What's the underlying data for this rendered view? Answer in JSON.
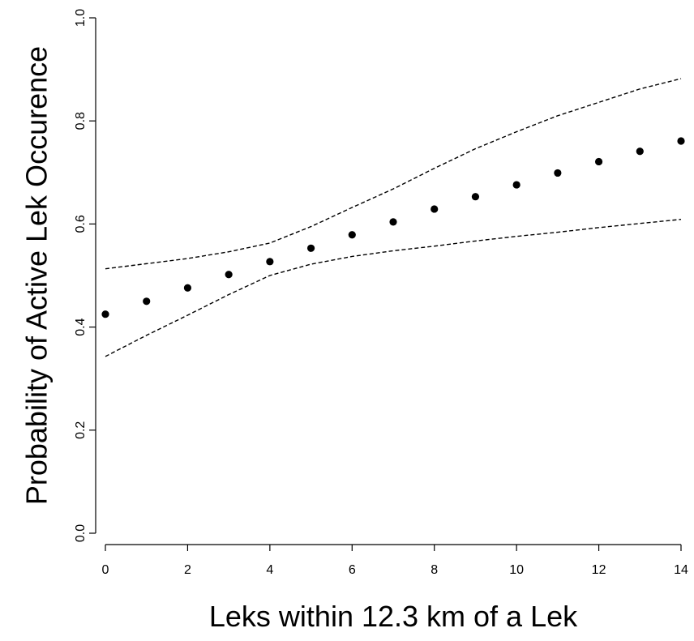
{
  "chart_data": {
    "type": "scatter",
    "title": "",
    "xlabel": "Leks within 12.3 km of a Lek",
    "ylabel": "Probability of Active Lek Occurence",
    "xlim": [
      0,
      14
    ],
    "ylim": [
      0,
      1
    ],
    "x_ticks": [
      0,
      2,
      4,
      6,
      8,
      10,
      12,
      14
    ],
    "y_ticks": [
      0.0,
      0.2,
      0.4,
      0.6,
      0.8,
      1.0
    ],
    "x_tick_labels": [
      "0",
      "2",
      "4",
      "6",
      "8",
      "10",
      "12",
      "14"
    ],
    "y_tick_labels": [
      "0.0",
      "0.2",
      "0.4",
      "0.6",
      "0.8",
      "1.0"
    ],
    "grid": false,
    "series": [
      {
        "style": "points",
        "color": "#000000",
        "x": [
          0,
          1,
          2,
          3,
          4,
          5,
          6,
          7,
          8,
          9,
          10,
          11,
          12,
          13,
          14
        ],
        "y": [
          0.425,
          0.45,
          0.476,
          0.502,
          0.527,
          0.553,
          0.579,
          0.604,
          0.629,
          0.653,
          0.676,
          0.699,
          0.721,
          0.741,
          0.761
        ]
      },
      {
        "style": "dashed",
        "color": "#000000",
        "x": [
          0,
          1,
          2,
          3,
          4,
          5,
          6,
          7,
          8,
          9,
          10,
          11,
          12,
          13,
          14
        ],
        "y": [
          0.513,
          0.523,
          0.533,
          0.546,
          0.563,
          0.595,
          0.632,
          0.668,
          0.708,
          0.746,
          0.779,
          0.81,
          0.836,
          0.862,
          0.882
        ]
      },
      {
        "style": "dashed",
        "color": "#000000",
        "x": [
          0,
          1,
          2,
          3,
          4,
          5,
          6,
          7,
          8,
          9,
          10,
          11,
          12,
          13,
          14
        ],
        "y": [
          0.343,
          0.384,
          0.423,
          0.463,
          0.5,
          0.522,
          0.537,
          0.548,
          0.557,
          0.567,
          0.576,
          0.584,
          0.593,
          0.601,
          0.609
        ]
      }
    ]
  }
}
